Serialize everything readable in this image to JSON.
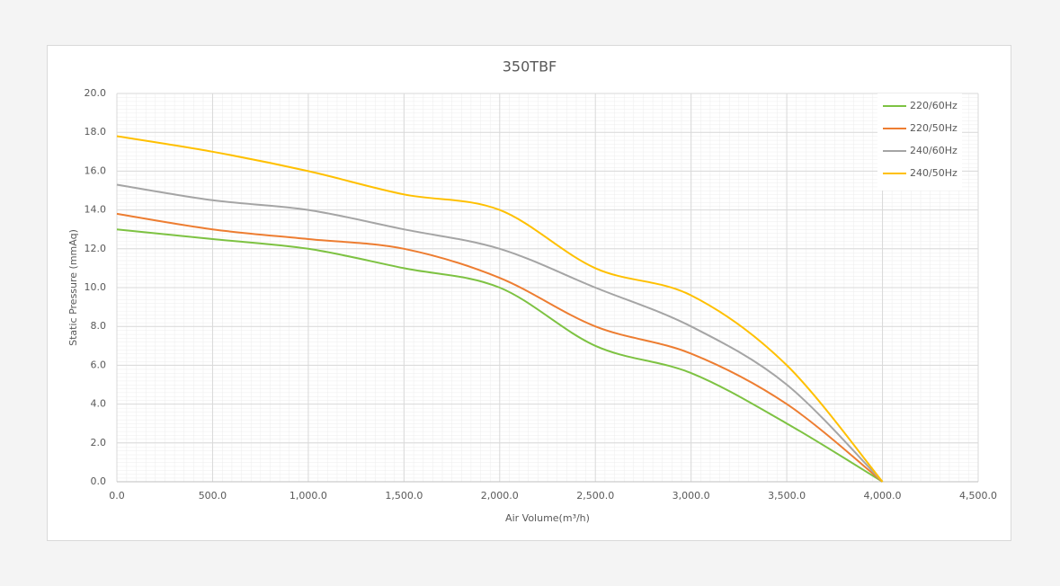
{
  "chart_data": {
    "type": "line",
    "title": "350TBF",
    "x_label": "Air Volume(m³/h)",
    "y_label": "Static Pressure (mmAq)",
    "x": [
      0,
      500,
      1000,
      1500,
      2000,
      2500,
      3000,
      3500,
      4000
    ],
    "series": [
      {
        "name": "220/60Hz",
        "color": "#7dc242",
        "values": [
          13.0,
          12.5,
          12.0,
          11.0,
          10.0,
          7.0,
          5.6,
          3.0,
          0
        ]
      },
      {
        "name": "220/50Hz",
        "color": "#ed7d31",
        "values": [
          13.8,
          13.0,
          12.5,
          12.0,
          10.5,
          8.0,
          6.6,
          4.0,
          0
        ]
      },
      {
        "name": "240/60Hz",
        "color": "#a5a5a5",
        "values": [
          15.3,
          14.5,
          14.0,
          13.0,
          12.0,
          10.0,
          8.0,
          5.0,
          0
        ]
      },
      {
        "name": "240/50Hz",
        "color": "#ffc000",
        "values": [
          17.8,
          17.0,
          16.0,
          14.8,
          14.0,
          11.0,
          9.6,
          6.0,
          0
        ]
      }
    ],
    "xlim": [
      0,
      4500
    ],
    "xticks": [
      {
        "value": 0,
        "label": "0.0"
      },
      {
        "value": 500,
        "label": "500.0"
      },
      {
        "value": 1000,
        "label": "1,000.0"
      },
      {
        "value": 1500,
        "label": "1,500.0"
      },
      {
        "value": 2000,
        "label": "2,000.0"
      },
      {
        "value": 2500,
        "label": "2,500.0"
      },
      {
        "value": 3000,
        "label": "3,000.0"
      },
      {
        "value": 3500,
        "label": "3,500.0"
      },
      {
        "value": 4000,
        "label": "4,000.0"
      },
      {
        "value": 4500,
        "label": "4,500.0"
      }
    ],
    "ylim": [
      0,
      20
    ],
    "yticks": [
      {
        "value": 0,
        "label": "0.0"
      },
      {
        "value": 2,
        "label": "2.0"
      },
      {
        "value": 4,
        "label": "4.0"
      },
      {
        "value": 6,
        "label": "6.0"
      },
      {
        "value": 8,
        "label": "8.0"
      },
      {
        "value": 10,
        "label": "10.0"
      },
      {
        "value": 12,
        "label": "12.0"
      },
      {
        "value": 14,
        "label": "14.0"
      },
      {
        "value": 16,
        "label": "16.0"
      },
      {
        "value": 18,
        "label": "18.0"
      },
      {
        "value": 20,
        "label": "20.0"
      }
    ],
    "grid": true,
    "smooth": true,
    "legend": "upper right"
  }
}
